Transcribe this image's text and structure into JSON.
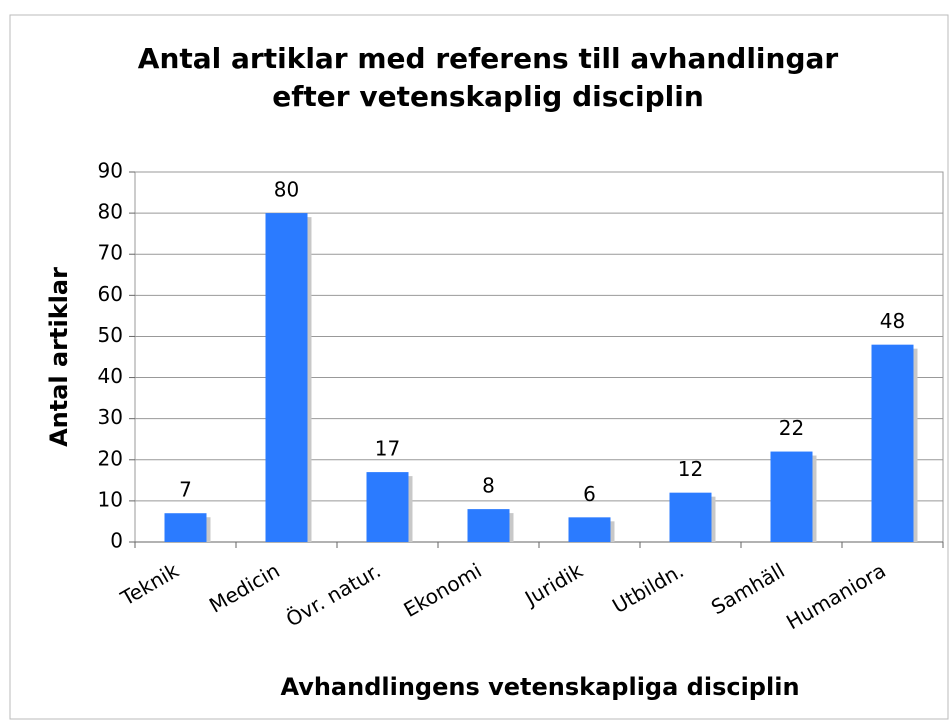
{
  "chart_data": {
    "type": "bar",
    "title": [
      "Antal artiklar med referens till avhandlingar",
      "efter vetenskaplig disciplin"
    ],
    "x_label": "Avhandlingens vetenskapliga disciplin",
    "y_label": "Antal artiklar",
    "categories": [
      "Teknik",
      "Medicin",
      "Övr. natur.",
      "Ekonomi",
      "Juridik",
      "Utbildn.",
      "Samhäll",
      "Humaniora"
    ],
    "values": [
      7,
      80,
      17,
      8,
      6,
      12,
      22,
      48
    ],
    "color": "#2b7bff",
    "ylim": [
      0,
      90
    ],
    "yticks": [
      0,
      10,
      20,
      30,
      40,
      50,
      60,
      70,
      80,
      90
    ],
    "grid": true
  }
}
